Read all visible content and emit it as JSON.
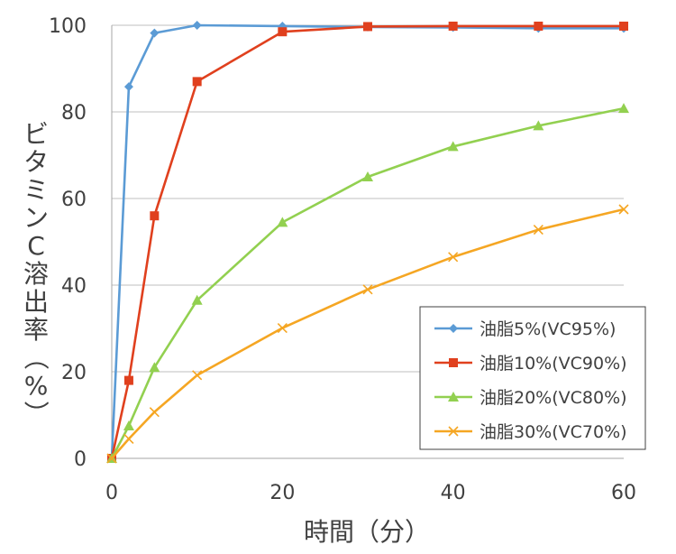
{
  "chart_data": {
    "type": "line",
    "xlabel": "時間（分）",
    "ylabel": "ビタミンC溶出率（%）",
    "xlim": [
      0,
      60
    ],
    "ylim": [
      0,
      100
    ],
    "xticks": [
      0,
      20,
      40,
      60
    ],
    "yticks": [
      0,
      20,
      40,
      60,
      80,
      100
    ],
    "grid": "horizontal",
    "legend_position": "bottom-right",
    "series": [
      {
        "name": "油脂5%(VC95%)",
        "color": "#5B9BD5",
        "marker": "diamond",
        "x": [
          0,
          2,
          5,
          10,
          20,
          30,
          40,
          50,
          60
        ],
        "y": [
          0,
          85.8,
          98.2,
          100,
          99.8,
          99.6,
          99.5,
          99.3,
          99.3
        ]
      },
      {
        "name": "油脂10%(VC90%)",
        "color": "#E0401E",
        "marker": "square",
        "x": [
          0,
          2,
          5,
          10,
          20,
          30,
          40,
          50,
          60
        ],
        "y": [
          0,
          18,
          56,
          87,
          98.5,
          99.7,
          99.8,
          99.8,
          99.8
        ]
      },
      {
        "name": "油脂20%(VC80%)",
        "color": "#92D050",
        "marker": "triangle",
        "x": [
          0,
          2,
          5,
          10,
          20,
          30,
          40,
          50,
          60
        ],
        "y": [
          0,
          7.5,
          21,
          36.5,
          54.5,
          65,
          72,
          76.8,
          80.8
        ]
      },
      {
        "name": "油脂30%(VC70%)",
        "color": "#F5A623",
        "marker": "x",
        "x": [
          0,
          2,
          5,
          10,
          20,
          30,
          40,
          50,
          60
        ],
        "y": [
          0,
          4.5,
          10.7,
          19.2,
          30.1,
          39,
          46.5,
          52.8,
          57.5
        ]
      }
    ]
  }
}
